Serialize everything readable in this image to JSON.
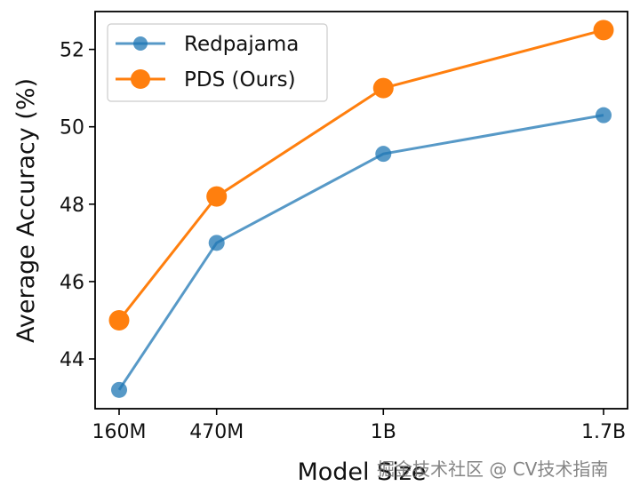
{
  "chart_data": {
    "type": "line",
    "title": "",
    "xlabel": "Model Size",
    "ylabel": "Average Accuracy (%)",
    "categories": [
      "160M",
      "470M",
      "1B",
      "1.7B"
    ],
    "x_values_billion": [
      0.16,
      0.47,
      1.0,
      1.7
    ],
    "ylim": [
      42.6,
      52.8
    ],
    "yticks": [
      44,
      46,
      48,
      50,
      52
    ],
    "grid": false,
    "legend_position": "top-left",
    "series": [
      {
        "name": "Redpajama",
        "color": "#1f77b4",
        "marker": "circle-small",
        "values": [
          43.2,
          47.0,
          49.3,
          50.3
        ]
      },
      {
        "name": "PDS (Ours)",
        "color": "#ff7f0e",
        "marker": "circle-large",
        "values": [
          45.0,
          48.2,
          51.0,
          52.5
        ]
      }
    ]
  },
  "watermark": "掘金技术社区 @ CV技术指南"
}
